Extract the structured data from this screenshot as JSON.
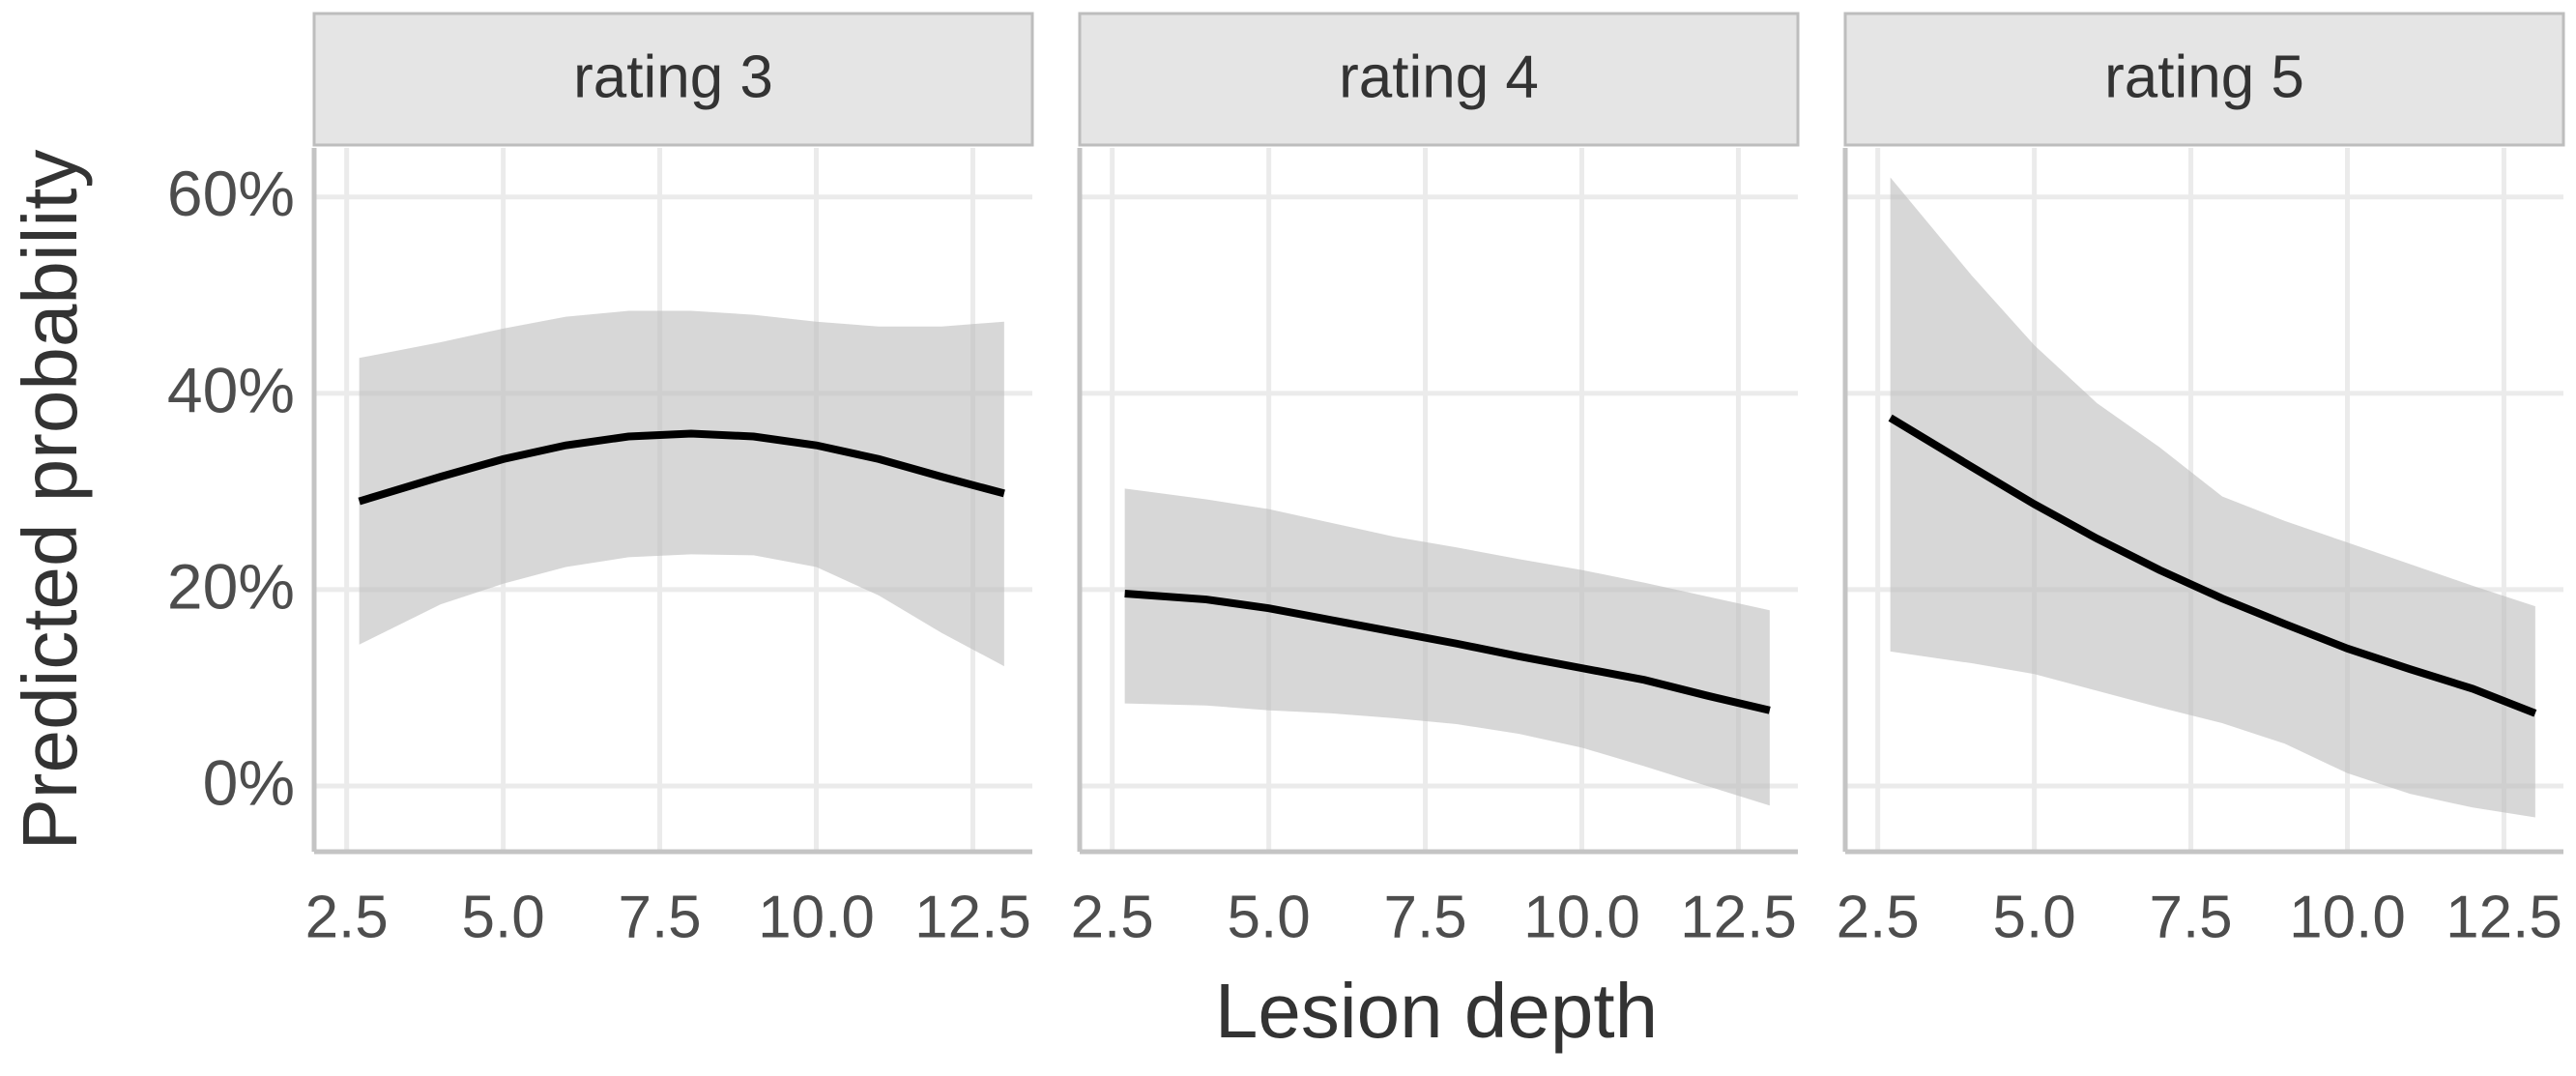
{
  "ylabel": "Predicted probability",
  "xlabel": "Lesion depth",
  "chart_data": [
    {
      "type": "line",
      "title": "rating 3",
      "color": "#000000",
      "band_color": "#bdbdbd",
      "grid": true,
      "x": [
        2.7,
        4,
        5,
        6,
        7,
        8,
        9,
        10,
        11,
        12,
        13
      ],
      "values": [
        29,
        31.5,
        33.3,
        34.7,
        35.6,
        35.9,
        35.6,
        34.7,
        33.3,
        31.5,
        29.8
      ],
      "lower": [
        14.4,
        18.5,
        20.6,
        22.3,
        23.3,
        23.6,
        23.5,
        22.3,
        19.4,
        15.6,
        12.2
      ],
      "upper": [
        43.6,
        45.2,
        46.6,
        47.8,
        48.4,
        48.4,
        48.0,
        47.3,
        46.8,
        46.8,
        47.3
      ],
      "xlim": [
        1.98,
        13.45
      ],
      "ylim": [
        -6.7,
        65
      ],
      "xticks": [
        2.5,
        {
          "value": 5,
          "label": "5.0"
        },
        7.5,
        {
          "value": 10,
          "label": "10.0"
        },
        12.5
      ],
      "yticks": [
        {
          "value": 0,
          "label": "0%"
        },
        {
          "value": 20,
          "label": "20%"
        },
        {
          "value": 40,
          "label": "40%"
        },
        {
          "value": 60,
          "label": "60%"
        }
      ]
    },
    {
      "type": "line",
      "title": "rating 4",
      "color": "#000000",
      "band_color": "#bdbdbd",
      "grid": true,
      "x": [
        2.7,
        4,
        5,
        6,
        7,
        8,
        9,
        10,
        11,
        12,
        13
      ],
      "values": [
        19.6,
        19.0,
        18.1,
        16.9,
        15.7,
        14.5,
        13.2,
        12.0,
        10.8,
        9.2,
        7.7
      ],
      "lower": [
        8.4,
        8.2,
        7.7,
        7.4,
        6.9,
        6.3,
        5.3,
        3.9,
        2.0,
        0.0,
        -2.0
      ],
      "upper": [
        30.3,
        29.2,
        28.2,
        26.8,
        25.4,
        24.3,
        23.1,
        22.0,
        20.7,
        19.3,
        17.9
      ],
      "xlim": [
        1.98,
        13.45
      ],
      "ylim": [
        -6.7,
        65
      ],
      "xticks": [
        2.5,
        {
          "value": 5,
          "label": "5.0"
        },
        7.5,
        {
          "value": 10,
          "label": "10.0"
        },
        12.5
      ],
      "yticks": [
        0,
        20,
        40,
        60
      ]
    },
    {
      "type": "line",
      "title": "rating 5",
      "color": "#000000",
      "band_color": "#bdbdbd",
      "grid": true,
      "x": [
        2.7,
        4,
        5,
        6,
        7,
        8,
        9,
        10,
        11,
        12,
        13
      ],
      "values": [
        37.5,
        32.5,
        28.7,
        25.2,
        22.0,
        19.1,
        16.5,
        14.0,
        11.9,
        9.9,
        7.4
      ],
      "lower": [
        13.7,
        12.5,
        11.4,
        9.7,
        8.0,
        6.4,
        4.3,
        1.3,
        -0.8,
        -2.2,
        -3.2
      ],
      "upper": [
        62,
        52,
        44.9,
        39,
        34.5,
        29.5,
        27,
        24.8,
        22.6,
        20.4,
        18.3
      ],
      "xlim": [
        1.98,
        13.45
      ],
      "ylim": [
        -6.7,
        65
      ],
      "xticks": [
        2.5,
        {
          "value": 5,
          "label": "5.0"
        },
        7.5,
        {
          "value": 10,
          "label": "10.0"
        },
        12.5
      ],
      "yticks": [
        0,
        20,
        40,
        60
      ]
    }
  ]
}
